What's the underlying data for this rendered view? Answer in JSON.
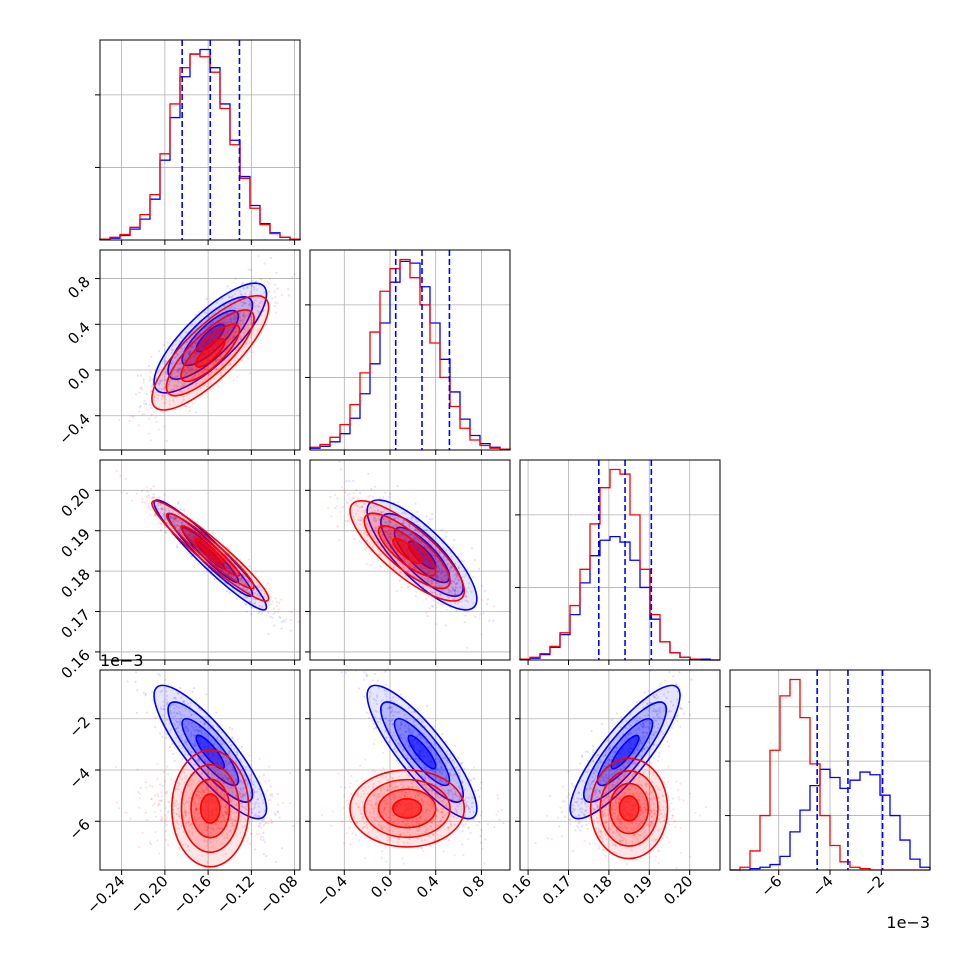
{
  "figure": {
    "offset_labels": {
      "panel_3_0_y": "1e−3",
      "panel_3_3_x": "1e−3"
    }
  },
  "colors": {
    "series_blue": "#0000ff",
    "series_red": "#ff0000",
    "grid": "#b0b0b0",
    "axes": "#000000"
  },
  "chart_data": {
    "type": "corner",
    "parameters": [
      {
        "index": 0,
        "range": [
          -0.26,
          -0.075
        ],
        "ticks": [
          "−0.24",
          "−0.20",
          "−0.16",
          "−0.12",
          "−0.08"
        ],
        "tick_values": [
          -0.24,
          -0.2,
          -0.16,
          -0.12,
          -0.08
        ]
      },
      {
        "index": 1,
        "range": [
          -0.7,
          1.05
        ],
        "ticks": [
          "−0.4",
          "0.0",
          "0.4",
          "0.8"
        ],
        "tick_values": [
          -0.4,
          0.0,
          0.4,
          0.8
        ]
      },
      {
        "index": 2,
        "range": [
          0.158,
          0.2075
        ],
        "ticks": [
          "0.16",
          "0.17",
          "0.18",
          "0.19",
          "0.20"
        ],
        "tick_values": [
          0.16,
          0.17,
          0.18,
          0.19,
          0.2
        ]
      },
      {
        "index": 3,
        "range": [
          -0.0079,
          -0.0001
        ],
        "ticks": [
          "−6",
          "−4",
          "−2"
        ],
        "tick_values": [
          -0.006,
          -0.004,
          -0.002
        ],
        "scale_note": "1e−3"
      }
    ],
    "series": [
      {
        "color": "#0000ff",
        "histograms": [
          {
            "values": [
              1,
              2,
              5,
              12,
              23,
              45,
              88,
              135,
              180,
              205,
              210,
              190,
              150,
              110,
              70,
              38,
              18,
              8,
              3,
              1
            ]
          },
          {
            "values": [
              2,
              4,
              9,
              18,
              35,
              62,
              95,
              140,
              185,
              208,
              206,
              180,
              140,
              100,
              64,
              34,
              16,
              7,
              3,
              1
            ]
          },
          {
            "values": [
              1,
              2,
              6,
              14,
              28,
              50,
              85,
              115,
              132,
              136,
              130,
              110,
              80,
              45,
              20,
              8,
              3,
              1,
              1,
              0
            ]
          },
          {
            "values": [
              0,
              0,
              1,
              2,
              4,
              10,
              28,
              44,
              62,
              74,
              68,
              60,
              66,
              72,
              70,
              55,
              40,
              22,
              8,
              2
            ]
          }
        ],
        "quantiles": [
          [
            -0.184,
            -0.158,
            -0.131
          ],
          [
            0.05,
            0.28,
            0.52
          ],
          [
            0.1775,
            0.184,
            0.1905
          ],
          [
            -0.0045,
            -0.0033,
            -0.00195
          ]
        ],
        "means": [
          -0.158,
          0.28,
          0.184,
          -0.0033
        ],
        "sds": [
          0.026,
          0.24,
          0.0068,
          0.0013
        ],
        "correlations": {
          "1_0": 0.8,
          "2_0": -0.95,
          "2_1": -0.8,
          "3_0": -0.85,
          "3_1": -0.85,
          "3_2": 0.85
        }
      },
      {
        "color": "#ff0000",
        "histograms": [
          {
            "values": [
              1,
              3,
              6,
              14,
              28,
              50,
              95,
              150,
              190,
              205,
              202,
              185,
              145,
              105,
              68,
              35,
              17,
              7,
              3,
              1
            ]
          },
          {
            "values": [
              3,
              6,
              14,
              28,
              50,
              85,
              130,
              175,
              200,
              210,
              190,
              160,
              118,
              80,
              48,
              24,
              11,
              5,
              2,
              1
            ]
          },
          {
            "values": [
              1,
              3,
              7,
              15,
              30,
              60,
              100,
              150,
              190,
              210,
              205,
              160,
              100,
              50,
              20,
              8,
              3,
              1,
              0,
              0
            ]
          },
          {
            "values": [
              0,
              2,
              14,
              40,
              88,
              128,
              140,
              112,
              78,
              40,
              18,
              6,
              2,
              1,
              0,
              0,
              0,
              0,
              0,
              0
            ]
          }
        ],
        "means": [
          -0.158,
          0.15,
          0.185,
          -0.0055
        ],
        "sds": [
          0.027,
          0.25,
          0.0062,
          0.00075
        ],
        "correlations": {
          "1_0": 0.8,
          "2_0": -0.95,
          "2_1": -0.8,
          "3_0": 0.0,
          "3_1": 0.0,
          "3_2": 0.0
        }
      }
    ],
    "grid": true,
    "contour_levels_sigma": [
      0.5,
      1.0,
      1.5,
      2.0
    ]
  }
}
